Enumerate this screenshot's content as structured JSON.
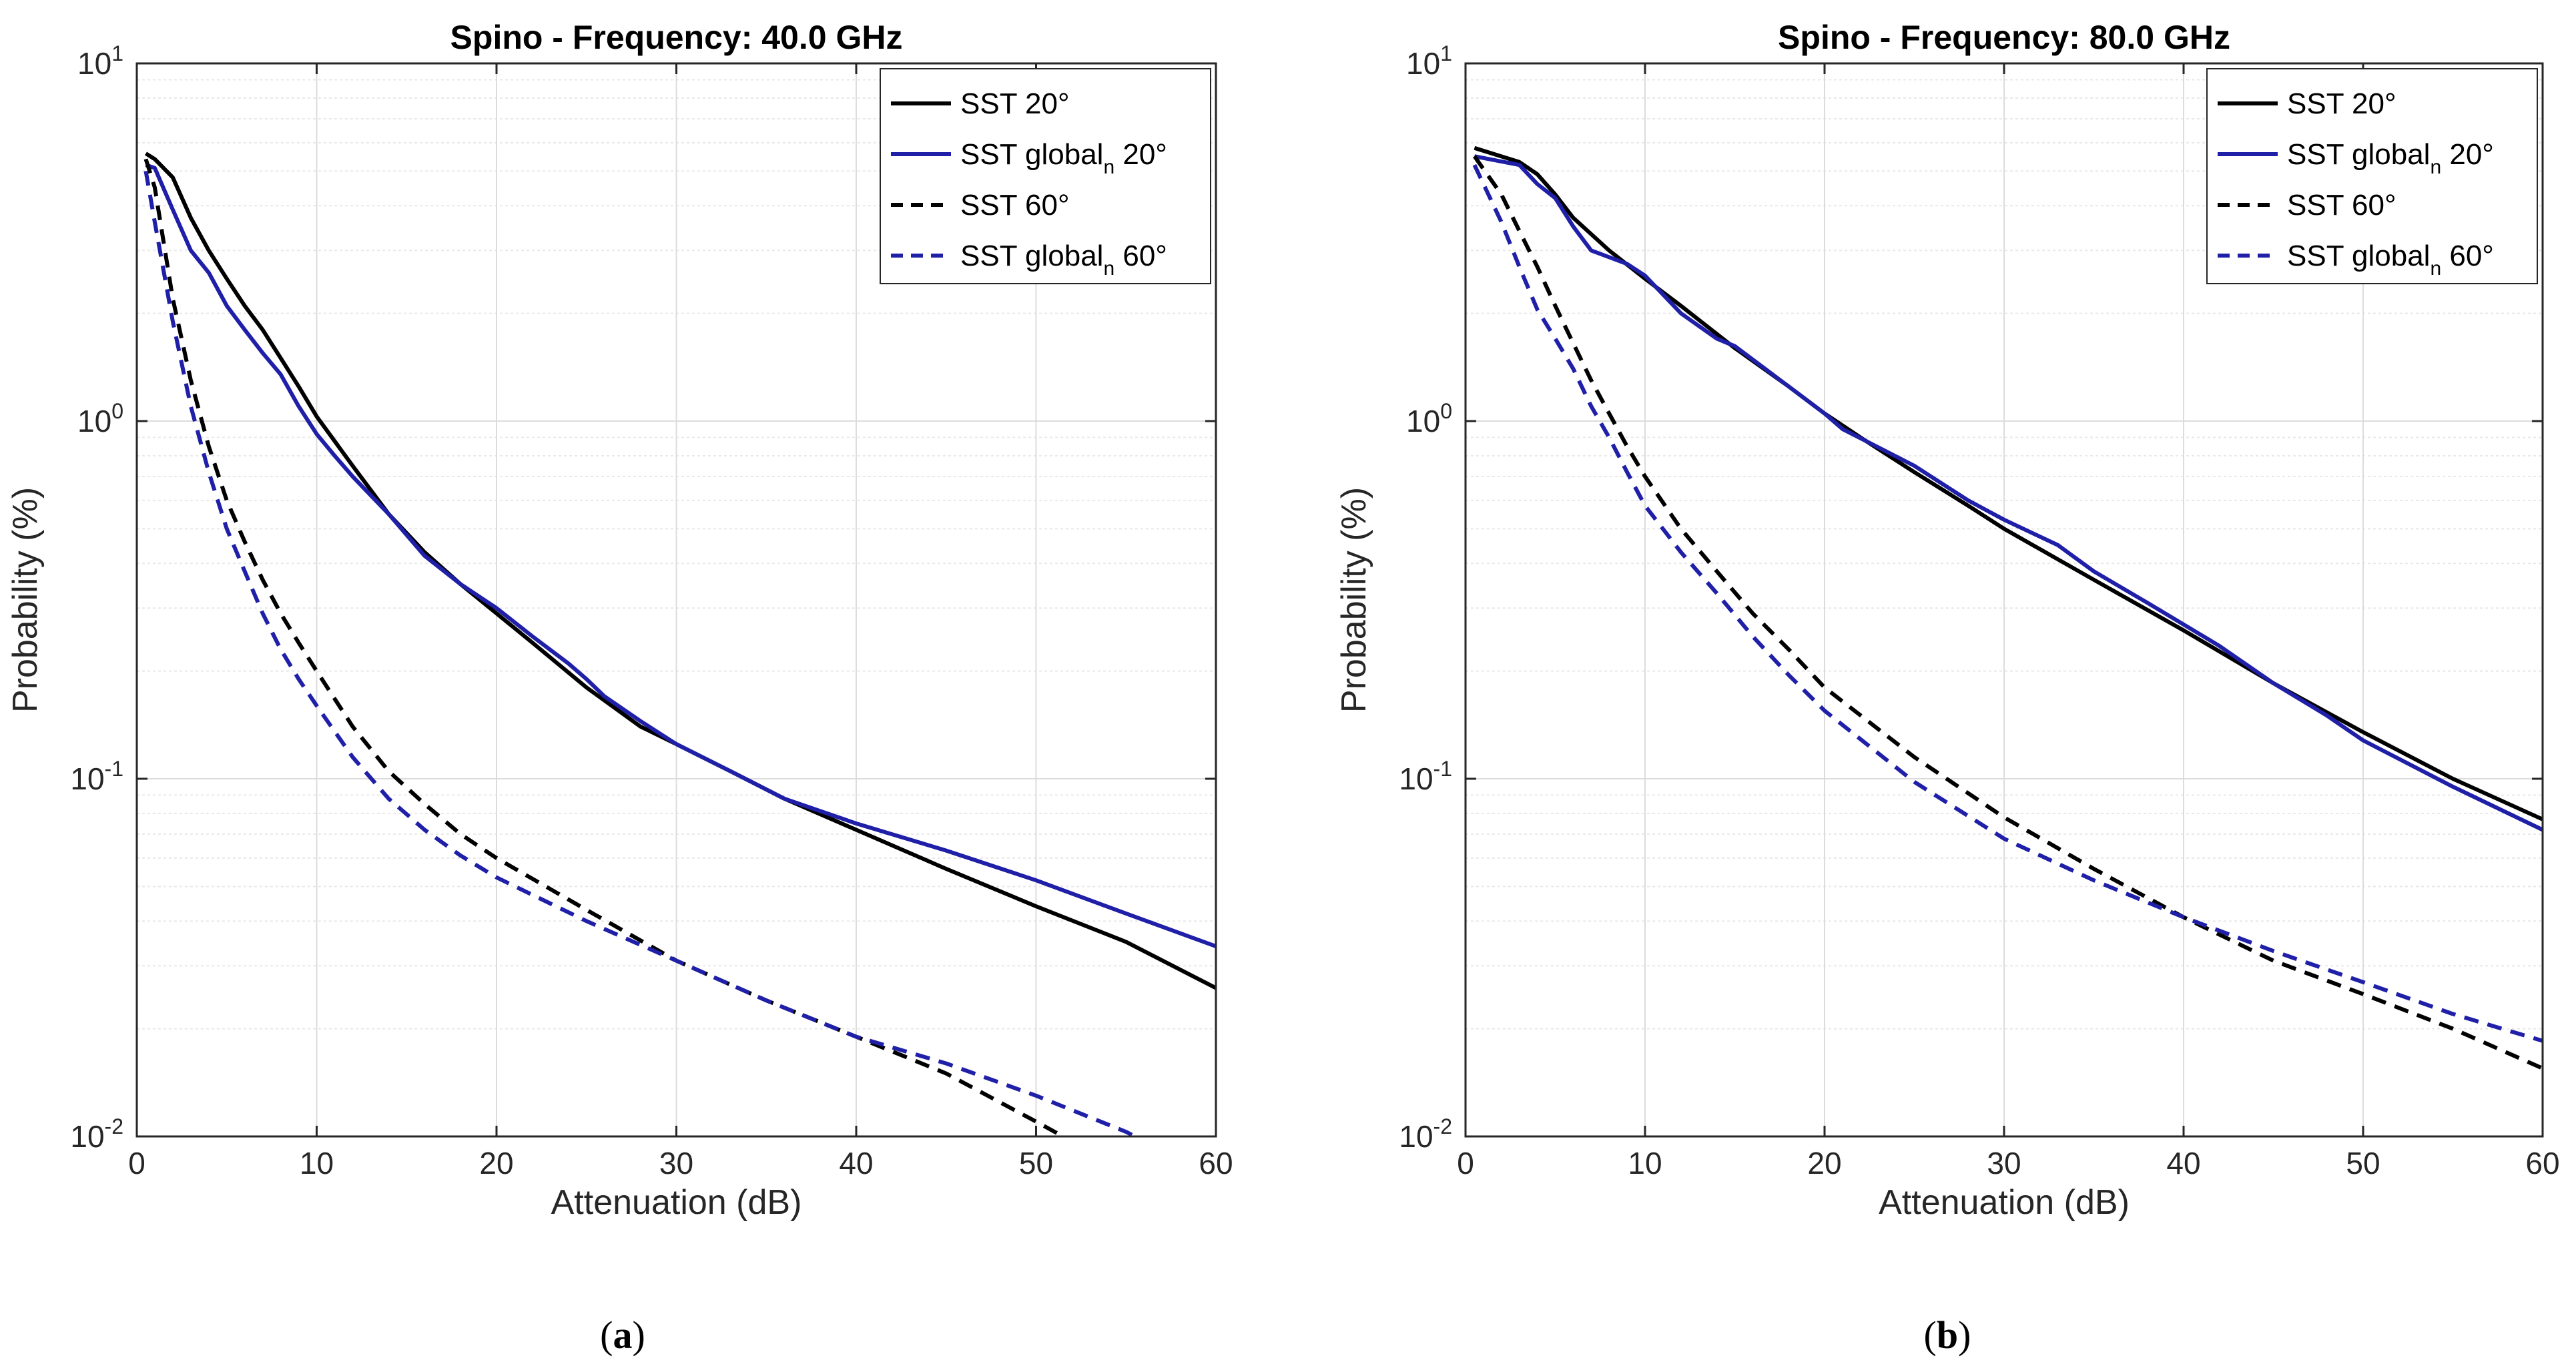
{
  "chart_data": [
    {
      "type": "line",
      "id": "a",
      "title": "Spino - Frequency: 40.0 GHz",
      "xlabel": "Attenuation (dB)",
      "ylabel": "Probability (%)",
      "xlim": [
        0,
        60
      ],
      "ylim": [
        0.01,
        10
      ],
      "yscale": "log",
      "grid": true,
      "legend_position": "top-right",
      "x_ticks": [
        0,
        10,
        20,
        30,
        40,
        50,
        60
      ],
      "x_tick_labels": [
        "0",
        "10",
        "20",
        "30",
        "40",
        "50",
        "60"
      ],
      "y_ticks": [
        {
          "value": 10,
          "base": "10",
          "exp": "1"
        },
        {
          "value": 1,
          "base": "10",
          "exp": "0"
        },
        {
          "value": 0.1,
          "base": "10",
          "exp": "-1"
        },
        {
          "value": 0.01,
          "base": "10",
          "exp": "-2"
        }
      ],
      "caption_letter": "a",
      "series": [
        {
          "legend": {
            "text": "SST 20°",
            "sub": "",
            "suffix": ""
          },
          "color": "#000000",
          "dash": "solid",
          "points": [
            [
              0.5,
              5.6
            ],
            [
              1,
              5.4
            ],
            [
              2,
              4.8
            ],
            [
              3,
              3.7
            ],
            [
              4,
              3.0
            ],
            [
              5,
              2.5
            ],
            [
              6,
              2.1
            ],
            [
              7,
              1.8
            ],
            [
              8,
              1.5
            ],
            [
              9,
              1.25
            ],
            [
              10,
              1.03
            ],
            [
              12,
              0.75
            ],
            [
              14,
              0.55
            ],
            [
              16,
              0.43
            ],
            [
              18,
              0.35
            ],
            [
              20,
              0.29
            ],
            [
              22,
              0.24
            ],
            [
              25,
              0.18
            ],
            [
              28,
              0.14
            ],
            [
              30,
              0.125
            ],
            [
              33,
              0.105
            ],
            [
              36,
              0.088
            ],
            [
              40,
              0.072
            ],
            [
              45,
              0.056
            ],
            [
              50,
              0.044
            ],
            [
              55,
              0.035
            ],
            [
              60,
              0.026
            ]
          ]
        },
        {
          "legend": {
            "text": "SST global",
            "sub": "n",
            "suffix": " 20°"
          },
          "color": "#1f1fa8",
          "dash": "solid",
          "points": [
            [
              0.5,
              5.2
            ],
            [
              1,
              5.1
            ],
            [
              2,
              3.9
            ],
            [
              3,
              3.0
            ],
            [
              4,
              2.6
            ],
            [
              5,
              2.1
            ],
            [
              6,
              1.8
            ],
            [
              7,
              1.55
            ],
            [
              8,
              1.35
            ],
            [
              9,
              1.1
            ],
            [
              10,
              0.92
            ],
            [
              11,
              0.8
            ],
            [
              12,
              0.7
            ],
            [
              14,
              0.55
            ],
            [
              16,
              0.42
            ],
            [
              18,
              0.35
            ],
            [
              20,
              0.3
            ],
            [
              22,
              0.25
            ],
            [
              24,
              0.21
            ],
            [
              25,
              0.19
            ],
            [
              26,
              0.17
            ],
            [
              28,
              0.145
            ],
            [
              30,
              0.125
            ],
            [
              33,
              0.105
            ],
            [
              36,
              0.088
            ],
            [
              40,
              0.075
            ],
            [
              45,
              0.063
            ],
            [
              50,
              0.052
            ],
            [
              55,
              0.042
            ],
            [
              60,
              0.034
            ]
          ]
        },
        {
          "legend": {
            "text": "SST 60°",
            "sub": "",
            "suffix": ""
          },
          "color": "#000000",
          "dash": "dashed",
          "points": [
            [
              0.5,
              5.4
            ],
            [
              1,
              4.5
            ],
            [
              2,
              2.2
            ],
            [
              3,
              1.3
            ],
            [
              4,
              0.85
            ],
            [
              5,
              0.6
            ],
            [
              6,
              0.46
            ],
            [
              7,
              0.36
            ],
            [
              8,
              0.29
            ],
            [
              9,
              0.24
            ],
            [
              10,
              0.2
            ],
            [
              12,
              0.14
            ],
            [
              14,
              0.105
            ],
            [
              16,
              0.085
            ],
            [
              18,
              0.07
            ],
            [
              20,
              0.06
            ],
            [
              25,
              0.043
            ],
            [
              30,
              0.031
            ],
            [
              35,
              0.024
            ],
            [
              40,
              0.019
            ],
            [
              45,
              0.015
            ],
            [
              50,
              0.011
            ],
            [
              51.5,
              0.01
            ]
          ]
        },
        {
          "legend": {
            "text": "SST global",
            "sub": "n",
            "suffix": " 60°"
          },
          "color": "#1f1fa8",
          "dash": "dashed",
          "points": [
            [
              0.5,
              5.0
            ],
            [
              1,
              3.6
            ],
            [
              2,
              1.9
            ],
            [
              3,
              1.1
            ],
            [
              4,
              0.72
            ],
            [
              5,
              0.5
            ],
            [
              6,
              0.38
            ],
            [
              7,
              0.29
            ],
            [
              8,
              0.23
            ],
            [
              9,
              0.19
            ],
            [
              10,
              0.16
            ],
            [
              12,
              0.115
            ],
            [
              14,
              0.088
            ],
            [
              16,
              0.072
            ],
            [
              18,
              0.061
            ],
            [
              20,
              0.053
            ],
            [
              25,
              0.04
            ],
            [
              30,
              0.031
            ],
            [
              35,
              0.024
            ],
            [
              40,
              0.019
            ],
            [
              45,
              0.016
            ],
            [
              50,
              0.013
            ],
            [
              55,
              0.0103
            ],
            [
              55.5,
              0.01
            ]
          ]
        }
      ]
    },
    {
      "type": "line",
      "id": "b",
      "title": "Spino - Frequency: 80.0 GHz",
      "xlabel": "Attenuation (dB)",
      "ylabel": "Probability (%)",
      "xlim": [
        0,
        60
      ],
      "ylim": [
        0.01,
        10
      ],
      "yscale": "log",
      "grid": true,
      "legend_position": "top-right",
      "x_ticks": [
        0,
        10,
        20,
        30,
        40,
        50,
        60
      ],
      "x_tick_labels": [
        "0",
        "10",
        "20",
        "30",
        "40",
        "50",
        "60"
      ],
      "y_ticks": [
        {
          "value": 10,
          "base": "10",
          "exp": "1"
        },
        {
          "value": 1,
          "base": "10",
          "exp": "0"
        },
        {
          "value": 0.1,
          "base": "10",
          "exp": "-1"
        },
        {
          "value": 0.01,
          "base": "10",
          "exp": "-2"
        }
      ],
      "caption_letter": "b",
      "series": [
        {
          "legend": {
            "text": "SST 20°",
            "sub": "",
            "suffix": ""
          },
          "color": "#000000",
          "dash": "solid",
          "points": [
            [
              0.5,
              5.8
            ],
            [
              3,
              5.3
            ],
            [
              4,
              4.9
            ],
            [
              5,
              4.3
            ],
            [
              6,
              3.7
            ],
            [
              8,
              3.0
            ],
            [
              10,
              2.5
            ],
            [
              12,
              2.1
            ],
            [
              15,
              1.6
            ],
            [
              18,
              1.25
            ],
            [
              20,
              1.05
            ],
            [
              22,
              0.9
            ],
            [
              25,
              0.72
            ],
            [
              28,
              0.58
            ],
            [
              30,
              0.5
            ],
            [
              35,
              0.36
            ],
            [
              40,
              0.26
            ],
            [
              45,
              0.185
            ],
            [
              50,
              0.135
            ],
            [
              55,
              0.1
            ],
            [
              60,
              0.077
            ]
          ]
        },
        {
          "legend": {
            "text": "SST global",
            "sub": "n",
            "suffix": " 20°"
          },
          "color": "#1f1fa8",
          "dash": "solid",
          "points": [
            [
              0.5,
              5.5
            ],
            [
              3,
              5.2
            ],
            [
              4,
              4.6
            ],
            [
              5,
              4.2
            ],
            [
              6,
              3.5
            ],
            [
              7,
              3.0
            ],
            [
              9,
              2.75
            ],
            [
              10,
              2.55
            ],
            [
              12,
              2.0
            ],
            [
              14,
              1.7
            ],
            [
              15,
              1.62
            ],
            [
              18,
              1.25
            ],
            [
              20,
              1.05
            ],
            [
              21,
              0.95
            ],
            [
              25,
              0.75
            ],
            [
              28,
              0.6
            ],
            [
              30,
              0.53
            ],
            [
              33,
              0.45
            ],
            [
              35,
              0.38
            ],
            [
              38,
              0.31
            ],
            [
              40,
              0.27
            ],
            [
              42,
              0.235
            ],
            [
              45,
              0.185
            ],
            [
              48,
              0.15
            ],
            [
              50,
              0.128
            ],
            [
              55,
              0.095
            ],
            [
              60,
              0.072
            ]
          ]
        },
        {
          "legend": {
            "text": "SST 60°",
            "sub": "",
            "suffix": ""
          },
          "color": "#000000",
          "dash": "dashed",
          "points": [
            [
              0.5,
              5.5
            ],
            [
              2,
              4.3
            ],
            [
              3,
              3.4
            ],
            [
              4,
              2.7
            ],
            [
              5,
              2.1
            ],
            [
              6,
              1.65
            ],
            [
              7,
              1.3
            ],
            [
              8,
              1.05
            ],
            [
              9,
              0.85
            ],
            [
              10,
              0.7
            ],
            [
              12,
              0.5
            ],
            [
              14,
              0.38
            ],
            [
              16,
              0.29
            ],
            [
              18,
              0.23
            ],
            [
              20,
              0.18
            ],
            [
              25,
              0.115
            ],
            [
              30,
              0.078
            ],
            [
              35,
              0.056
            ],
            [
              40,
              0.041
            ],
            [
              45,
              0.031
            ],
            [
              50,
              0.025
            ],
            [
              55,
              0.02
            ],
            [
              60,
              0.0155
            ]
          ]
        },
        {
          "legend": {
            "text": "SST global",
            "sub": "n",
            "suffix": " 60°"
          },
          "color": "#1f1fa8",
          "dash": "dashed",
          "points": [
            [
              0.5,
              5.2
            ],
            [
              2,
              3.6
            ],
            [
              3,
              2.7
            ],
            [
              4,
              2.05
            ],
            [
              5,
              1.7
            ],
            [
              6,
              1.4
            ],
            [
              7,
              1.1
            ],
            [
              8,
              0.9
            ],
            [
              9,
              0.72
            ],
            [
              10,
              0.58
            ],
            [
              12,
              0.43
            ],
            [
              14,
              0.33
            ],
            [
              16,
              0.25
            ],
            [
              18,
              0.195
            ],
            [
              20,
              0.155
            ],
            [
              25,
              0.098
            ],
            [
              30,
              0.068
            ],
            [
              35,
              0.052
            ],
            [
              40,
              0.041
            ],
            [
              45,
              0.033
            ],
            [
              50,
              0.027
            ],
            [
              55,
              0.022
            ],
            [
              60,
              0.0185
            ]
          ]
        }
      ]
    }
  ]
}
